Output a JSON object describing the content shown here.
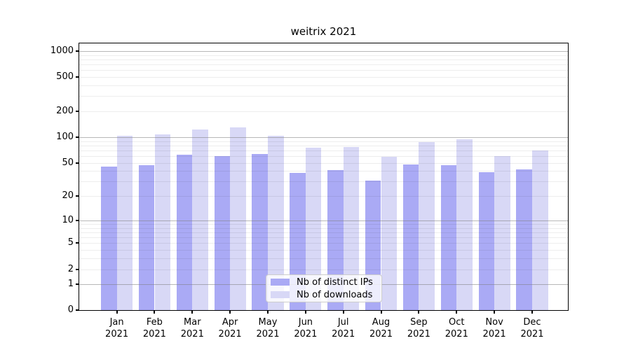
{
  "title": "weitrix 2021",
  "chart_data": {
    "type": "bar",
    "title": "weitrix 2021",
    "yscale": "log1p",
    "ylim": [
      0,
      1230
    ],
    "grid": true,
    "legend_position": "lower center",
    "categories": [
      {
        "label": "Jan",
        "sub": "2021"
      },
      {
        "label": "Feb",
        "sub": "2021"
      },
      {
        "label": "Mar",
        "sub": "2021"
      },
      {
        "label": "Apr",
        "sub": "2021"
      },
      {
        "label": "May",
        "sub": "2021"
      },
      {
        "label": "Jun",
        "sub": "2021"
      },
      {
        "label": "Jul",
        "sub": "2021"
      },
      {
        "label": "Aug",
        "sub": "2021"
      },
      {
        "label": "Sep",
        "sub": "2021"
      },
      {
        "label": "Oct",
        "sub": "2021"
      },
      {
        "label": "Nov",
        "sub": "2021"
      },
      {
        "label": "Dec",
        "sub": "2021"
      }
    ],
    "yticks": [
      1000,
      500,
      200,
      100,
      50,
      20,
      10,
      5,
      2,
      1,
      0
    ],
    "gridlines": {
      "major": [
        1,
        10,
        100,
        1000
      ],
      "minor": [
        2,
        3,
        4,
        5,
        6,
        7,
        8,
        9,
        20,
        30,
        40,
        50,
        60,
        70,
        80,
        90,
        200,
        300,
        400,
        500,
        600,
        700,
        800,
        900
      ]
    },
    "series": [
      {
        "name": "Nb of distinct IPs",
        "color": "#aaaaf5",
        "values": [
          45,
          47,
          63,
          60,
          64,
          38,
          41,
          31,
          48,
          47,
          39,
          42
        ]
      },
      {
        "name": "Nb of downloads",
        "color": "#d8d8f6",
        "values": [
          103,
          107,
          122,
          130,
          104,
          75,
          77,
          59,
          87,
          95,
          60,
          70
        ]
      }
    ]
  }
}
